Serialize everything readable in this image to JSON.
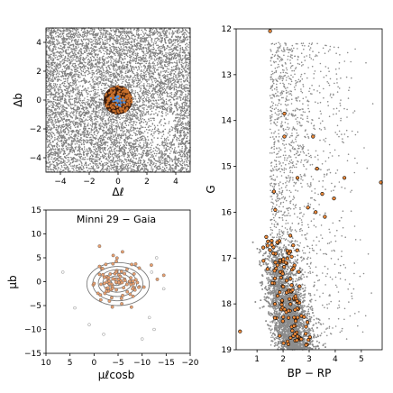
{
  "chart_data": [
    {
      "id": "spatial",
      "type": "scatter",
      "xlabel": "Δℓ",
      "ylabel": "Δb",
      "xlim": [
        -5,
        5
      ],
      "ylim": [
        -5,
        5
      ],
      "xticks": [
        -4,
        -2,
        0,
        2,
        4
      ],
      "yticks": [
        -4,
        -2,
        0,
        2,
        4
      ],
      "field_color": "#808080",
      "member_color": "#3b1d0e",
      "core_color": "#4a90e2",
      "member_radius": 1.0,
      "field_stars": 9000,
      "members": 160
    },
    {
      "id": "proper-motion",
      "type": "scatter",
      "title": "Minni 29  −  Gaia",
      "xlabel": "μℓcosb",
      "ylabel": "μb",
      "xlim": [
        10,
        -20
      ],
      "ylim": [
        -15,
        15
      ],
      "xticks": [
        10,
        5,
        0,
        -5,
        -10,
        -15,
        -20
      ],
      "yticks": [
        -15,
        -10,
        -5,
        0,
        5,
        10,
        15
      ],
      "center": [
        -5,
        -0.5
      ],
      "contour_levels": [
        [
          6.5,
          4.5
        ],
        [
          5.2,
          3.6
        ],
        [
          4.0,
          2.8
        ],
        [
          3.0,
          2.0
        ],
        [
          2.0,
          1.3
        ],
        [
          1.1,
          0.8
        ]
      ],
      "member_fill": "#e8a070",
      "member_edge": "#555555"
    },
    {
      "id": "cmd",
      "type": "scatter",
      "xlabel": "BP − RP",
      "ylabel": "G",
      "xlim": [
        0.2,
        5.8
      ],
      "ylim": [
        19.0,
        12.0
      ],
      "xticks": [
        1,
        2,
        3,
        4,
        5
      ],
      "yticks": [
        12,
        13,
        14,
        15,
        16,
        17,
        18,
        19
      ],
      "field_color": "#8c8c8c",
      "member_fill": "#f08c3c",
      "member_edge": "#000000",
      "bright_members": [
        [
          1.5,
          12.05
        ],
        [
          2.05,
          13.85
        ],
        [
          2.05,
          14.35
        ],
        [
          3.15,
          14.35
        ],
        [
          2.55,
          15.25
        ],
        [
          3.3,
          15.05
        ],
        [
          3.5,
          15.6
        ],
        [
          4.35,
          15.25
        ],
        [
          5.75,
          15.35
        ],
        [
          3.95,
          15.7
        ],
        [
          1.65,
          15.55
        ],
        [
          1.7,
          15.95
        ],
        [
          2.95,
          15.9
        ],
        [
          3.25,
          16.0
        ],
        [
          3.6,
          16.1
        ],
        [
          0.35,
          18.6
        ]
      ]
    }
  ]
}
